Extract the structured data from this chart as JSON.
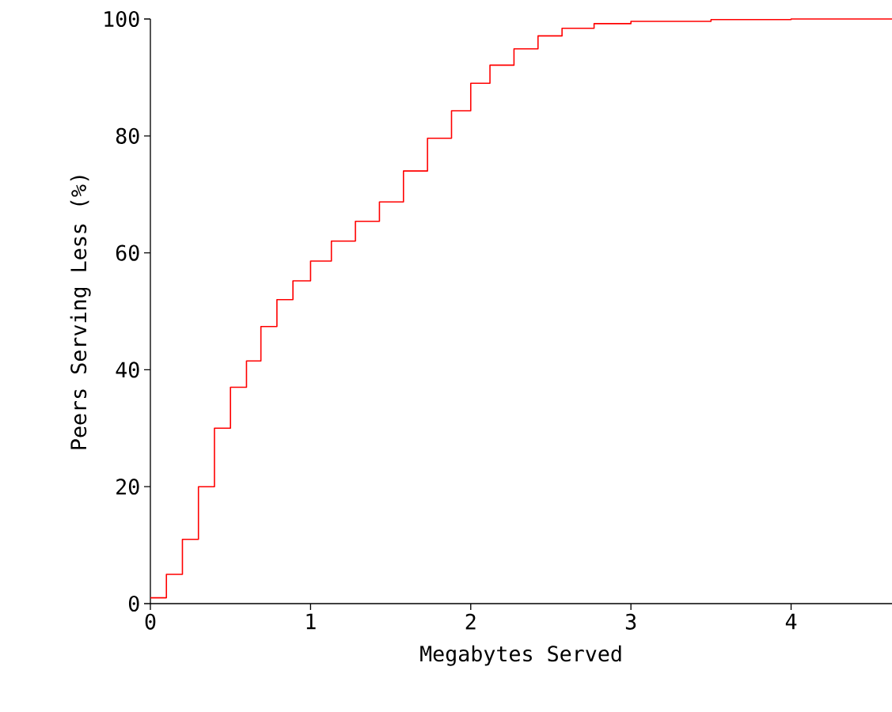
{
  "chart_data": {
    "type": "step",
    "xlabel": "Megabytes Served",
    "ylabel": "Peers Serving Less (%)",
    "x": [
      0,
      0.1,
      0.2,
      0.3,
      0.4,
      0.5,
      0.6,
      0.69,
      0.79,
      0.89,
      1.0,
      1.13,
      1.28,
      1.43,
      1.58,
      1.73,
      1.88,
      2.0,
      2.12,
      2.27,
      2.42,
      2.57,
      2.77,
      3.0,
      3.5,
      4.0,
      4.63
    ],
    "series": [
      {
        "color": "#ff0000",
        "values": [
          1,
          5,
          11,
          20,
          30,
          37,
          41.5,
          47.4,
          52,
          55.2,
          58.6,
          62,
          65.4,
          68.7,
          74,
          79.6,
          84.3,
          89,
          92.1,
          94.9,
          97.1,
          98.4,
          99.2,
          99.6,
          99.9,
          100,
          100
        ]
      }
    ],
    "xlim": [
      0,
      4.63
    ],
    "ylim": [
      0,
      100
    ],
    "xticks": [
      0,
      1,
      2,
      3,
      4
    ],
    "yticks": [
      0,
      20,
      40,
      60,
      80,
      100
    ],
    "grid": false
  }
}
